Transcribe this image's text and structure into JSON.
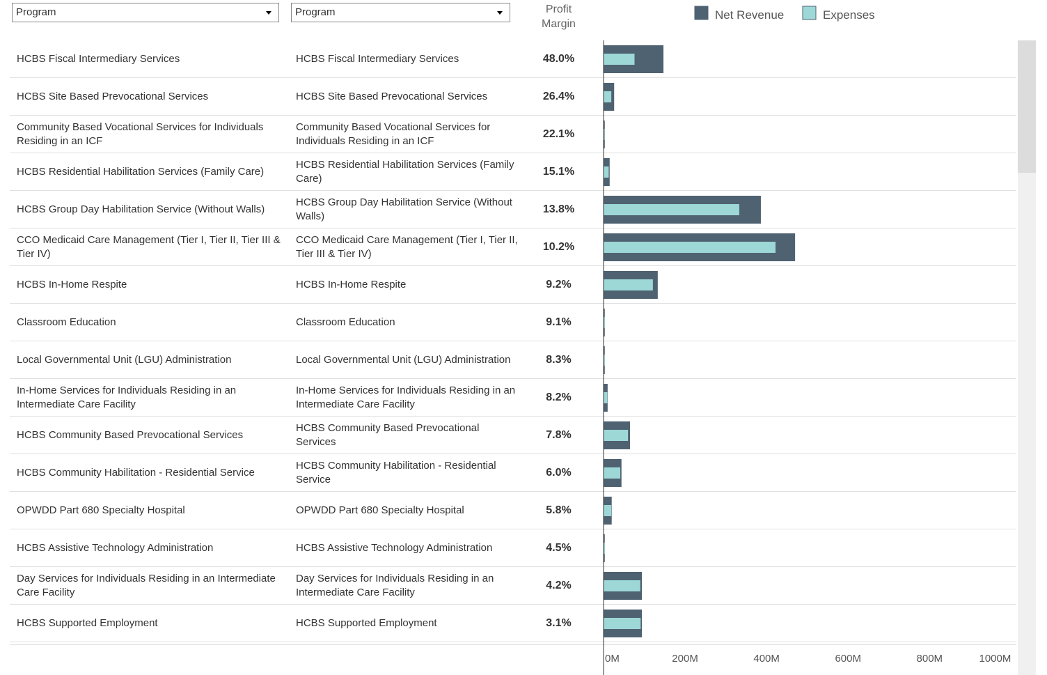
{
  "chart_data": {
    "type": "bar",
    "filters": [
      "Program",
      "Program"
    ],
    "margin_header": "Profit Margin",
    "categories": [
      "HCBS Fiscal Intermediary Services",
      "HCBS Site Based Prevocational Services",
      "Community Based Vocational Services for Individuals Residing in an ICF",
      "HCBS Residential Habilitation Services (Family Care)",
      "HCBS Group Day Habilitation Service (Without Walls)",
      "CCO Medicaid Care Management (Tier I, Tier II, Tier III & Tier IV)",
      "HCBS In-Home Respite",
      "Classroom Education",
      "Local Governmental Unit (LGU) Administration",
      "In-Home Services for Individuals Residing in an Intermediate Care Facility",
      "HCBS Community Based Prevocational Services",
      "HCBS Community Habilitation - Residential Service",
      "OPWDD Part 680 Specialty Hospital",
      "HCBS Assistive Technology Administration",
      "Day Services for Individuals Residing in an Intermediate Care Facility",
      "HCBS Supported Employment"
    ],
    "series": [
      {
        "name": "Net Revenue",
        "color": "#4f6272",
        "values": [
          147,
          26,
          3,
          15,
          386,
          470,
          133,
          3,
          3,
          10,
          65,
          44,
          20,
          3,
          94,
          94
        ]
      },
      {
        "name": "Expenses",
        "color": "#9dd8d6",
        "values": [
          76,
          19,
          2.3,
          12.7,
          333,
          422,
          121,
          2.7,
          2.75,
          9.2,
          60,
          41,
          19,
          2.9,
          90,
          91
        ]
      }
    ],
    "margin": {
      "values": [
        48.0,
        26.4,
        22.1,
        15.1,
        13.8,
        10.2,
        9.2,
        9.1,
        8.3,
        8.2,
        7.8,
        6.0,
        5.8,
        4.5,
        4.2,
        3.1
      ],
      "value_labels": [
        "48.0%",
        "26.4%",
        "22.1%",
        "15.1%",
        "13.8%",
        "10.2%",
        "9.2%",
        "9.1%",
        "8.3%",
        "8.2%",
        "7.8%",
        "6.0%",
        "5.8%",
        "4.5%",
        "4.2%",
        "3.1%"
      ]
    },
    "xlim": [
      0,
      1013
    ],
    "xticks": [
      {
        "value": 0,
        "label": "0M"
      },
      {
        "value": 200,
        "label": "200M"
      },
      {
        "value": 400,
        "label": "400M"
      },
      {
        "value": 600,
        "label": "600M"
      },
      {
        "value": 800,
        "label": "800M"
      },
      {
        "value": 1000,
        "label": "1000M"
      }
    ],
    "grid": false
  }
}
